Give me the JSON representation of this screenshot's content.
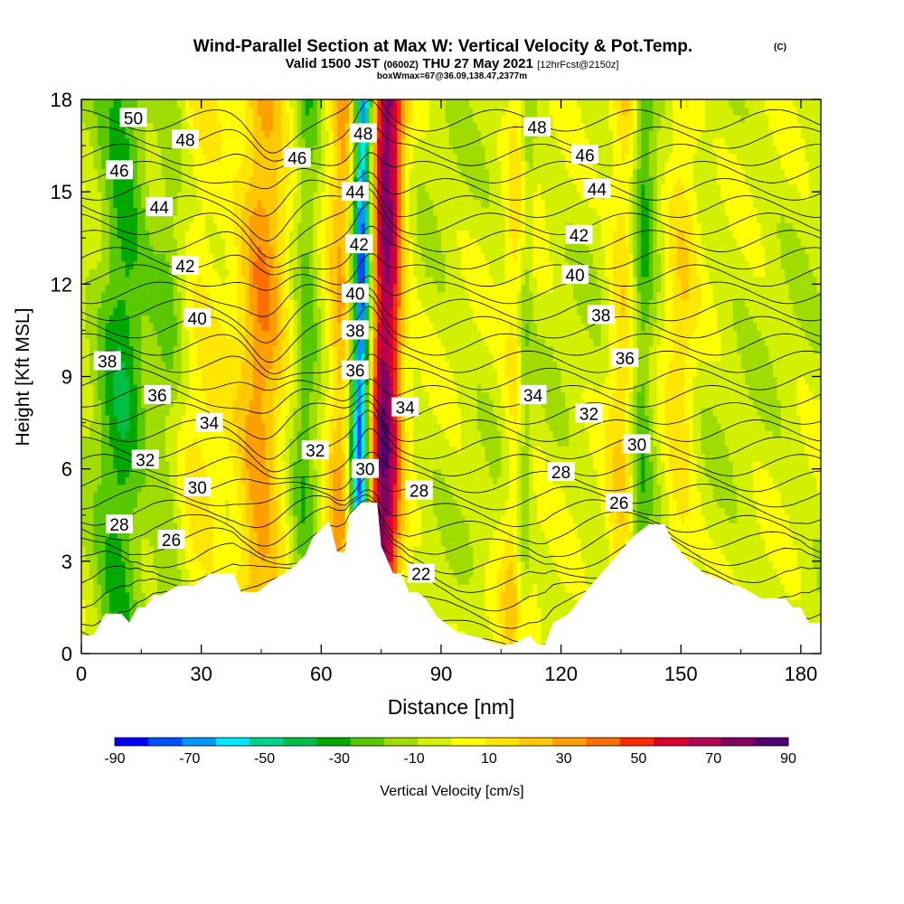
{
  "title": {
    "main": "Wind-Parallel Section at Max W: Vertical Velocity & Pot.Temp.",
    "copyright": "(C)",
    "valid_prefix": "Valid 1500 JST",
    "valid_utc": "(0600Z)",
    "valid_date": "THU 27 May 2021",
    "forecast": "[12hrFcst@2150z]",
    "box_info": "boxWmax=67@36.09,138.47,2377m"
  },
  "chart_data": {
    "type": "heatmap",
    "xlabel": "Distance [nm]",
    "ylabel": "Height [Kft MSL]",
    "xlim": [
      0,
      185
    ],
    "ylim": [
      0,
      18
    ],
    "x_ticks": [
      0,
      30,
      60,
      90,
      120,
      150,
      180
    ],
    "y_ticks": [
      0,
      3,
      6,
      9,
      12,
      15,
      18
    ],
    "colorbar": {
      "label": "Vertical Velocity [cm/s]",
      "min": -90,
      "max": 90,
      "step": 10,
      "tick_labels": [
        -90,
        -70,
        -50,
        -30,
        -10,
        10,
        30,
        50,
        70,
        90
      ],
      "colors": [
        "#0000ff",
        "#0050ff",
        "#0096ff",
        "#00e8ff",
        "#00d28c",
        "#00be46",
        "#00a800",
        "#5ac800",
        "#a0dc00",
        "#d2f000",
        "#ffff00",
        "#ffe600",
        "#ffc800",
        "#ffa000",
        "#ff6e00",
        "#ff2800",
        "#dc0028",
        "#b40050",
        "#820064",
        "#50006e"
      ]
    },
    "terrain_kft": [
      [
        0,
        0.6
      ],
      [
        3,
        0.6
      ],
      [
        6,
        1.3
      ],
      [
        10,
        1.3
      ],
      [
        12,
        1.0
      ],
      [
        14,
        1.5
      ],
      [
        16,
        1.5
      ],
      [
        18,
        1.9
      ],
      [
        20,
        1.9
      ],
      [
        24,
        2.2
      ],
      [
        28,
        2.2
      ],
      [
        32,
        2.6
      ],
      [
        38,
        2.6
      ],
      [
        40,
        2.0
      ],
      [
        44,
        2.0
      ],
      [
        48,
        2.4
      ],
      [
        52,
        2.7
      ],
      [
        56,
        3.2
      ],
      [
        58,
        3.8
      ],
      [
        62,
        4.3
      ],
      [
        64,
        3.3
      ],
      [
        66,
        3.3
      ],
      [
        67,
        4.5
      ],
      [
        70,
        4.9
      ],
      [
        74,
        4.9
      ],
      [
        75,
        3.5
      ],
      [
        78,
        2.6
      ],
      [
        80,
        2.6
      ],
      [
        82,
        2.0
      ],
      [
        84,
        2.0
      ],
      [
        86,
        1.8
      ],
      [
        89,
        1.2
      ],
      [
        94,
        0.7
      ],
      [
        100,
        0.5
      ],
      [
        104,
        0.3
      ],
      [
        108,
        0.3
      ],
      [
        112,
        0.6
      ],
      [
        114,
        0.3
      ],
      [
        116,
        0.3
      ],
      [
        118,
        1.0
      ],
      [
        122,
        1.3
      ],
      [
        126,
        2.0
      ],
      [
        130,
        2.6
      ],
      [
        134,
        3.2
      ],
      [
        138,
        3.8
      ],
      [
        142,
        4.2
      ],
      [
        146,
        4.2
      ],
      [
        148,
        3.6
      ],
      [
        152,
        3.0
      ],
      [
        156,
        2.6
      ],
      [
        160,
        2.4
      ],
      [
        166,
        2.1
      ],
      [
        170,
        1.8
      ],
      [
        176,
        1.8
      ],
      [
        178,
        1.5
      ],
      [
        180,
        1.5
      ],
      [
        182,
        1.0
      ],
      [
        185,
        1.0
      ]
    ],
    "series": [
      {
        "name": "Vertical Velocity [cm/s]",
        "kind": "updraft_band_centers_nm",
        "values": [
          [
            76,
            90,
            4.2
          ],
          [
            45,
            40,
            6
          ],
          [
            65,
            35,
            3.5
          ],
          [
            110,
            30,
            3.5
          ],
          [
            136,
            25,
            4
          ],
          [
            150,
            20,
            4
          ],
          [
            30,
            15,
            7
          ]
        ]
      },
      {
        "name": "Vertical Velocity [cm/s]",
        "kind": "downdraft_band_centers_nm",
        "values": [
          [
            70,
            -90,
            2.5
          ],
          [
            10,
            -30,
            6
          ],
          [
            111,
            -35,
            2.2
          ],
          [
            140,
            -30,
            3
          ],
          [
            56,
            -20,
            3
          ],
          [
            22,
            -15,
            4
          ]
        ]
      }
    ],
    "isentrope_labels": [
      {
        "text": "50",
        "x": 13,
        "y": 17.4
      },
      {
        "text": "48",
        "x": 26,
        "y": 16.7
      },
      {
        "text": "46",
        "x": 9.5,
        "y": 15.7
      },
      {
        "text": "44",
        "x": 19.5,
        "y": 14.5
      },
      {
        "text": "42",
        "x": 26,
        "y": 12.6
      },
      {
        "text": "40",
        "x": 29,
        "y": 10.9
      },
      {
        "text": "38",
        "x": 6.5,
        "y": 9.5
      },
      {
        "text": "36",
        "x": 19,
        "y": 8.4
      },
      {
        "text": "34",
        "x": 32,
        "y": 7.5
      },
      {
        "text": "32",
        "x": 16,
        "y": 6.3
      },
      {
        "text": "30",
        "x": 29,
        "y": 5.4
      },
      {
        "text": "28",
        "x": 9.5,
        "y": 4.2
      },
      {
        "text": "26",
        "x": 22.5,
        "y": 3.7
      },
      {
        "text": "46",
        "x": 54,
        "y": 16.1
      },
      {
        "text": "48",
        "x": 70.5,
        "y": 16.9
      },
      {
        "text": "44",
        "x": 68.5,
        "y": 15.0
      },
      {
        "text": "42",
        "x": 69.5,
        "y": 13.3
      },
      {
        "text": "40",
        "x": 68.5,
        "y": 11.7
      },
      {
        "text": "38",
        "x": 68.5,
        "y": 10.5
      },
      {
        "text": "36",
        "x": 68.5,
        "y": 9.2
      },
      {
        "text": "34",
        "x": 81,
        "y": 8.0
      },
      {
        "text": "32",
        "x": 58.5,
        "y": 6.6
      },
      {
        "text": "30",
        "x": 71,
        "y": 6.0
      },
      {
        "text": "28",
        "x": 84.5,
        "y": 5.3
      },
      {
        "text": "22",
        "x": 85,
        "y": 2.6
      },
      {
        "text": "48",
        "x": 114,
        "y": 17.1
      },
      {
        "text": "46",
        "x": 126,
        "y": 16.2
      },
      {
        "text": "44",
        "x": 129,
        "y": 15.1
      },
      {
        "text": "42",
        "x": 124.5,
        "y": 13.6
      },
      {
        "text": "40",
        "x": 123.5,
        "y": 12.3
      },
      {
        "text": "38",
        "x": 130,
        "y": 11.0
      },
      {
        "text": "36",
        "x": 136,
        "y": 9.6
      },
      {
        "text": "34",
        "x": 113,
        "y": 8.4
      },
      {
        "text": "32",
        "x": 127,
        "y": 7.8
      },
      {
        "text": "30",
        "x": 139,
        "y": 6.8
      },
      {
        "text": "28",
        "x": 120,
        "y": 5.9
      },
      {
        "text": "26",
        "x": 134.5,
        "y": 4.9
      }
    ]
  }
}
